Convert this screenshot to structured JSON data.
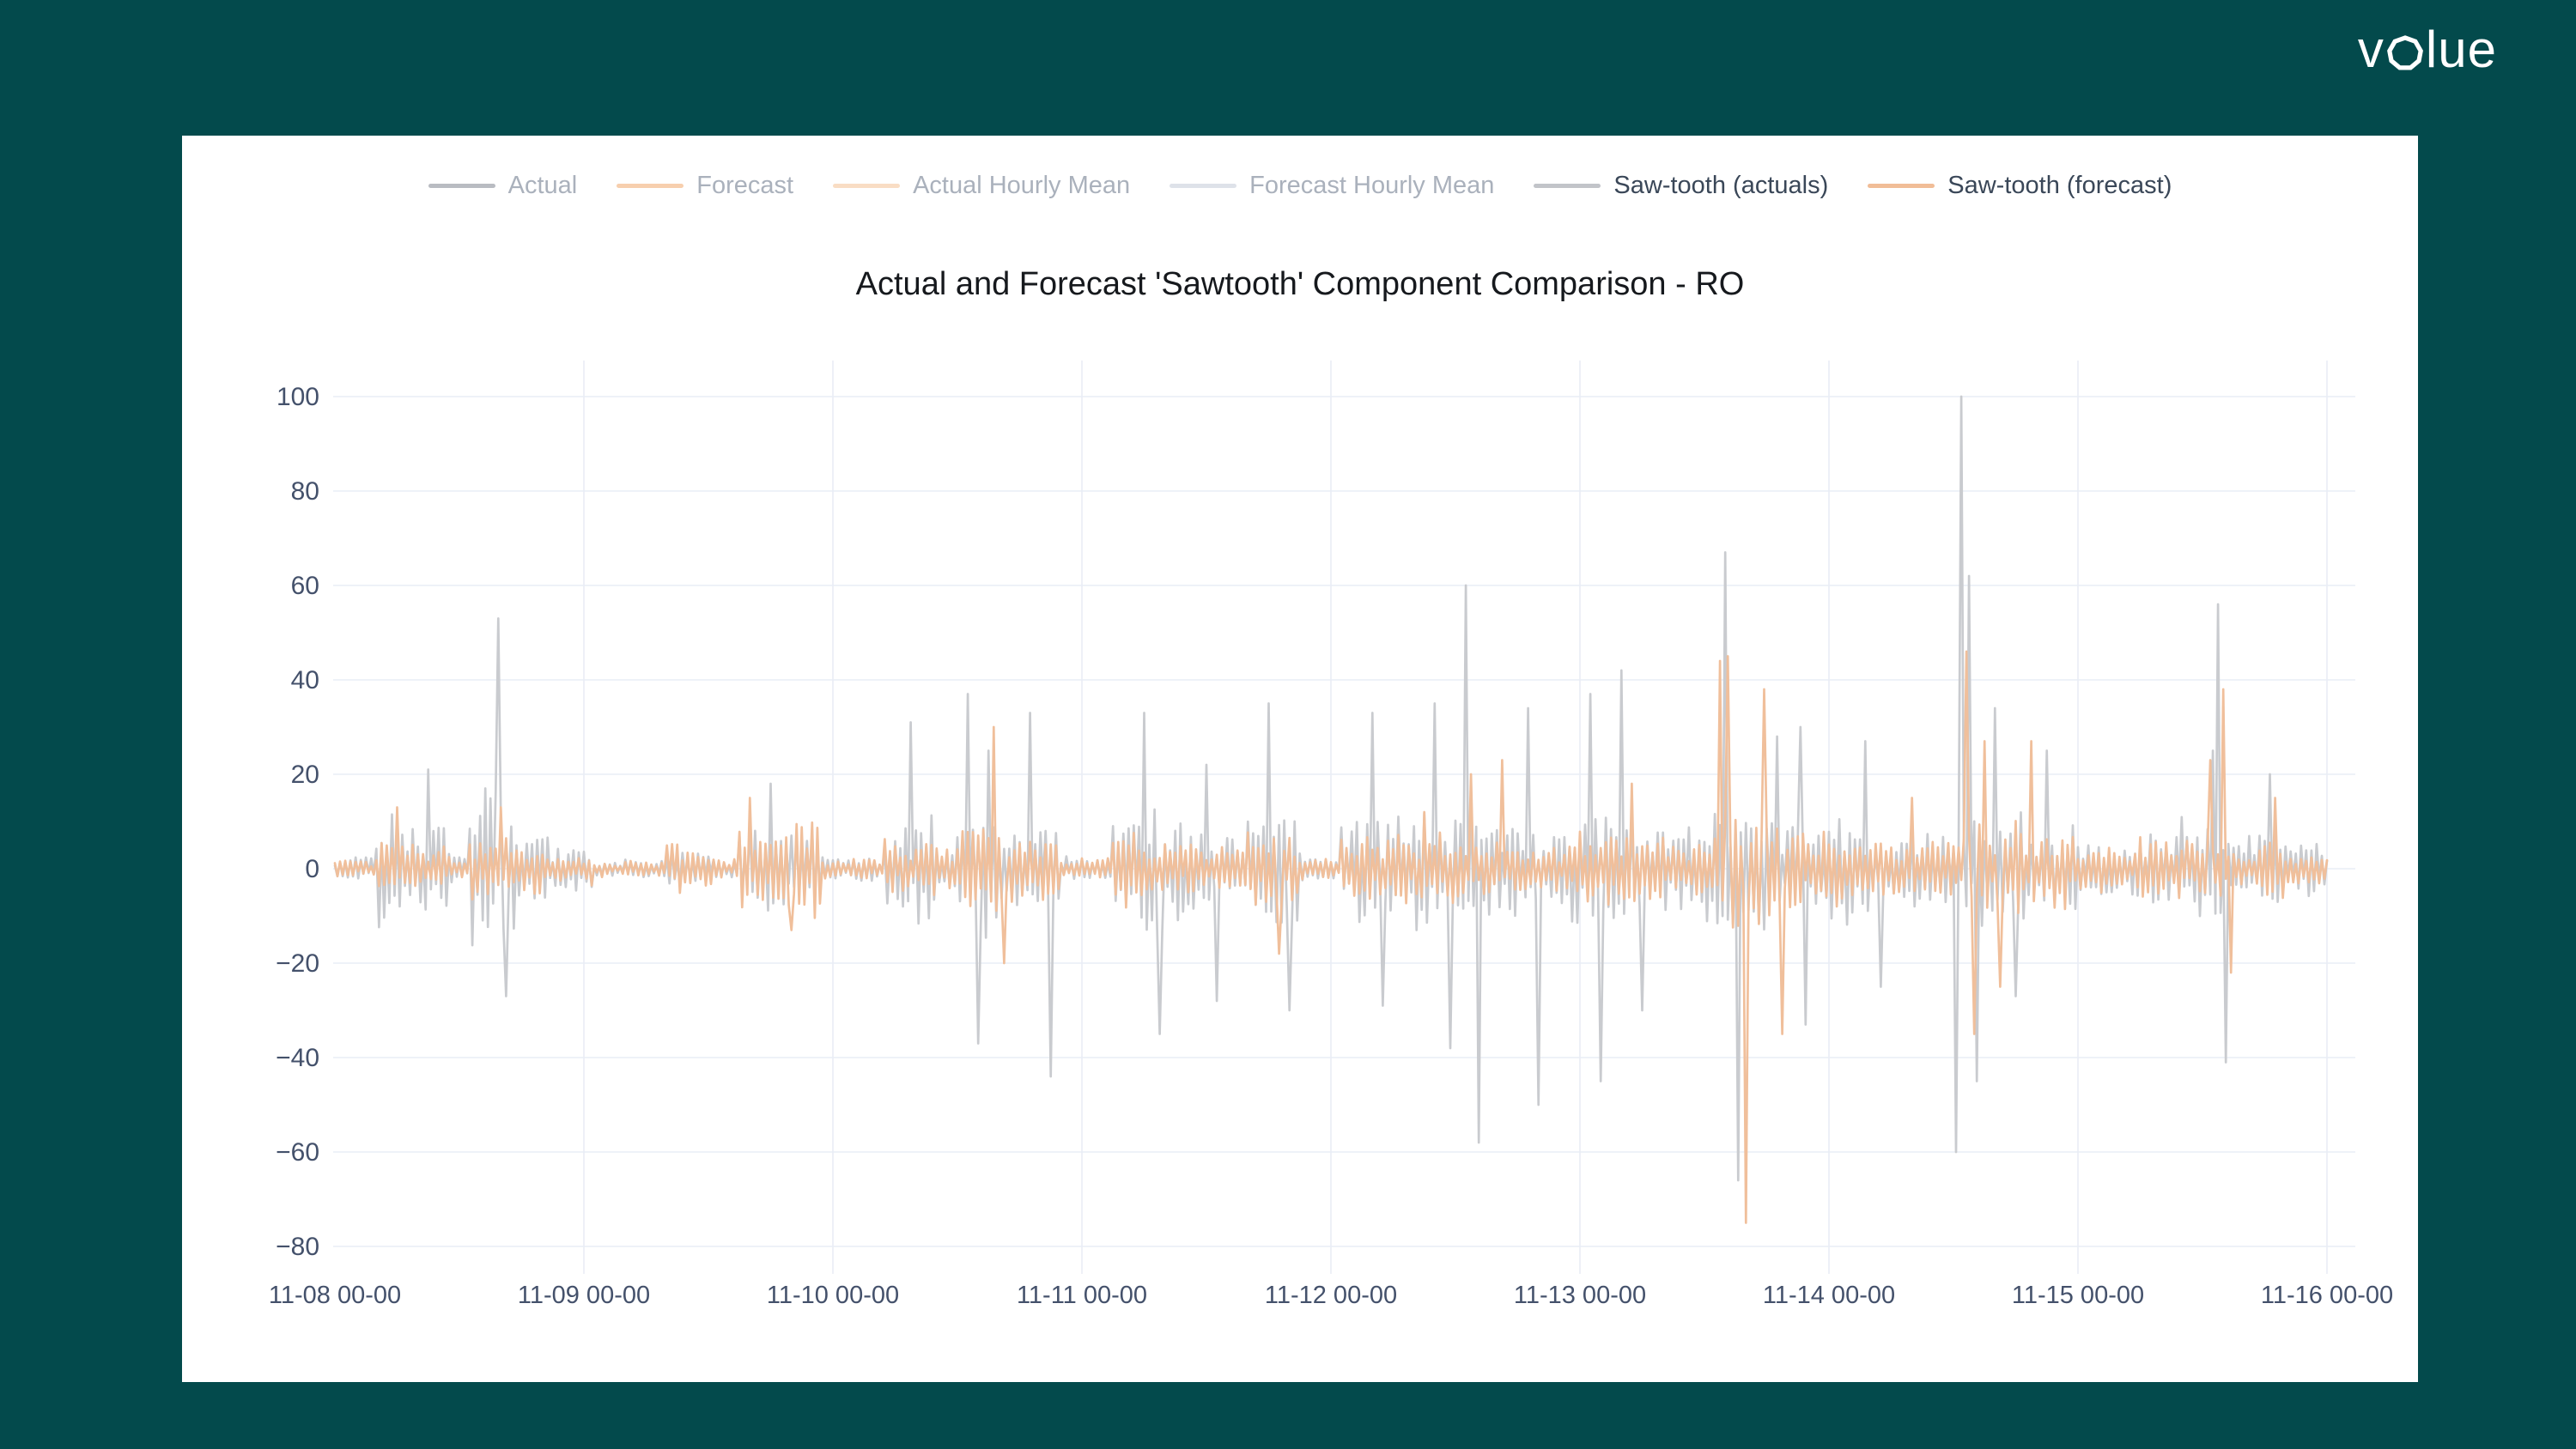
{
  "page": {
    "background_color": "#034a4c",
    "card_color": "#ffffff",
    "logo": {
      "pre": "v",
      "post": "lue",
      "full": "volue"
    }
  },
  "chart_data": {
    "type": "line",
    "title": "Actual and Forecast 'Sawtooth' Component Comparison - RO",
    "xlabel": "",
    "ylabel": "",
    "grid": true,
    "legend_position": "top-center",
    "ylim": [
      -86,
      108
    ],
    "x_range_hours": [
      0,
      192
    ],
    "resolution_hours": 0.25,
    "x_ticks": [
      "11-08 00-00",
      "11-09 00-00",
      "11-10 00-00",
      "11-11 00-00",
      "11-12 00-00",
      "11-13 00-00",
      "11-14 00-00",
      "11-15 00-00",
      "11-16 00-00"
    ],
    "y_tick_values": [
      100,
      80,
      60,
      40,
      20,
      0,
      -20,
      -40,
      -60,
      -80
    ],
    "y_tick_labels": [
      "100",
      "80",
      "60",
      "40",
      "20",
      "0",
      "−20",
      "−40",
      "−60",
      "−80"
    ],
    "legend": [
      {
        "label": "Actual",
        "color": "#b9bcc2",
        "active": false
      },
      {
        "label": "Forecast",
        "color": "#f7cfae",
        "active": false
      },
      {
        "label": "Actual Hourly Mean",
        "color": "#f9ddc4",
        "active": false
      },
      {
        "label": "Forecast Hourly Mean",
        "color": "#dee2e9",
        "active": false
      },
      {
        "label": "Saw-tooth (actuals)",
        "color": "#c2c4c9",
        "active": true
      },
      {
        "label": "Saw-tooth (forecast)",
        "color": "#f1bd97",
        "active": true
      }
    ],
    "series": [
      {
        "name": "Saw-tooth (actuals)",
        "color": "#c9cbcf",
        "envelope": [
          [
            0,
            4,
            2.5
          ],
          [
            4,
            11,
            13
          ],
          [
            11,
            13,
            4
          ],
          [
            13,
            17.5,
            20
          ],
          [
            17.5,
            21,
            9
          ],
          [
            21,
            25,
            6
          ],
          [
            25,
            32,
            2.5
          ],
          [
            32,
            37,
            4
          ],
          [
            37,
            39,
            3
          ],
          [
            39,
            47,
            11
          ],
          [
            47,
            53,
            3
          ],
          [
            53,
            58,
            14
          ],
          [
            58,
            60,
            7
          ],
          [
            60,
            66,
            15
          ],
          [
            66,
            70,
            11
          ],
          [
            70,
            75,
            3
          ],
          [
            75,
            82,
            14
          ],
          [
            82,
            88,
            10
          ],
          [
            88,
            93,
            13
          ],
          [
            93,
            97,
            4
          ],
          [
            97,
            104,
            13
          ],
          [
            104,
            109,
            14
          ],
          [
            109,
            114,
            15
          ],
          [
            114,
            119,
            9
          ],
          [
            119,
            124,
            15
          ],
          [
            124,
            128,
            11
          ],
          [
            128,
            133,
            13
          ],
          [
            133,
            139,
            17
          ],
          [
            139,
            142,
            12
          ],
          [
            142,
            147,
            12
          ],
          [
            147,
            152,
            10
          ],
          [
            152,
            157,
            10
          ],
          [
            157,
            163,
            15
          ],
          [
            163,
            168,
            11
          ],
          [
            168,
            173,
            6
          ],
          [
            173,
            178,
            8
          ],
          [
            178,
            183,
            12
          ],
          [
            183,
            188,
            9
          ],
          [
            188,
            192,
            6
          ]
        ],
        "spikes": [
          [
            9,
            21
          ],
          [
            15.75,
            53
          ],
          [
            16.5,
            -27
          ],
          [
            42,
            18
          ],
          [
            55.5,
            31
          ],
          [
            61,
            37
          ],
          [
            62,
            -37
          ],
          [
            63,
            25
          ],
          [
            67,
            33
          ],
          [
            69,
            -44
          ],
          [
            78,
            33
          ],
          [
            79.5,
            -35
          ],
          [
            84,
            22
          ],
          [
            85,
            -28
          ],
          [
            90,
            35
          ],
          [
            92,
            -30
          ],
          [
            100,
            33
          ],
          [
            101,
            -29
          ],
          [
            106,
            35
          ],
          [
            107.5,
            -38
          ],
          [
            109,
            60
          ],
          [
            110.25,
            -58
          ],
          [
            115,
            34
          ],
          [
            116,
            -50
          ],
          [
            121,
            37
          ],
          [
            122,
            -45
          ],
          [
            124,
            42
          ],
          [
            126,
            -30
          ],
          [
            133.9,
            67
          ],
          [
            135.25,
            -66
          ],
          [
            139,
            28
          ],
          [
            141.25,
            30
          ],
          [
            141.75,
            -33
          ],
          [
            147.5,
            27
          ],
          [
            149,
            -25
          ],
          [
            156.25,
            -60
          ],
          [
            156.75,
            100
          ],
          [
            157.5,
            62
          ],
          [
            158.25,
            -45
          ],
          [
            160,
            34
          ],
          [
            162,
            -27
          ],
          [
            165,
            25
          ],
          [
            181,
            25
          ],
          [
            181.5,
            56
          ],
          [
            182.25,
            -41
          ],
          [
            186.5,
            20
          ]
        ]
      },
      {
        "name": "Saw-tooth (forecast)",
        "color": "#f0bf9b",
        "envelope": [
          [
            0,
            4,
            2
          ],
          [
            4,
            11,
            6
          ],
          [
            11,
            13,
            3
          ],
          [
            13,
            17.5,
            9
          ],
          [
            17.5,
            21,
            6
          ],
          [
            21,
            25,
            4
          ],
          [
            25,
            32,
            2
          ],
          [
            32,
            37,
            6
          ],
          [
            37,
            39,
            3
          ],
          [
            39,
            47,
            11
          ],
          [
            47,
            53,
            2.5
          ],
          [
            53,
            58,
            8
          ],
          [
            58,
            60,
            5
          ],
          [
            60,
            66,
            11
          ],
          [
            66,
            70,
            8
          ],
          [
            70,
            75,
            3
          ],
          [
            75,
            82,
            9
          ],
          [
            82,
            88,
            7
          ],
          [
            88,
            93,
            9
          ],
          [
            93,
            97,
            3
          ],
          [
            97,
            104,
            8
          ],
          [
            104,
            109,
            10
          ],
          [
            109,
            114,
            9
          ],
          [
            114,
            119,
            7
          ],
          [
            119,
            124,
            10
          ],
          [
            124,
            128,
            9
          ],
          [
            128,
            133,
            9
          ],
          [
            133,
            139,
            14
          ],
          [
            139,
            142,
            10
          ],
          [
            142,
            147,
            10
          ],
          [
            147,
            152,
            7
          ],
          [
            152,
            157,
            8
          ],
          [
            157,
            163,
            12
          ],
          [
            163,
            168,
            9
          ],
          [
            168,
            173,
            6
          ],
          [
            173,
            178,
            7
          ],
          [
            178,
            183,
            9
          ],
          [
            183,
            188,
            7
          ],
          [
            188,
            192,
            5
          ]
        ],
        "spikes": [
          [
            6,
            13
          ],
          [
            15.9,
            13
          ],
          [
            40,
            15
          ],
          [
            44,
            -13
          ],
          [
            63.5,
            30
          ],
          [
            64.5,
            -20
          ],
          [
            91,
            -18
          ],
          [
            105,
            12
          ],
          [
            109.5,
            20
          ],
          [
            112.5,
            23
          ],
          [
            125,
            18
          ],
          [
            133.4,
            44
          ],
          [
            134.25,
            45
          ],
          [
            136,
            -75
          ],
          [
            137.75,
            38
          ],
          [
            139.5,
            -35
          ],
          [
            152,
            15
          ],
          [
            157.25,
            46
          ],
          [
            157.9,
            -35
          ],
          [
            159,
            27
          ],
          [
            160.5,
            -25
          ],
          [
            163.5,
            27
          ],
          [
            180.75,
            23
          ],
          [
            181.9,
            38
          ],
          [
            182.75,
            -22
          ],
          [
            187,
            15
          ]
        ]
      }
    ]
  }
}
